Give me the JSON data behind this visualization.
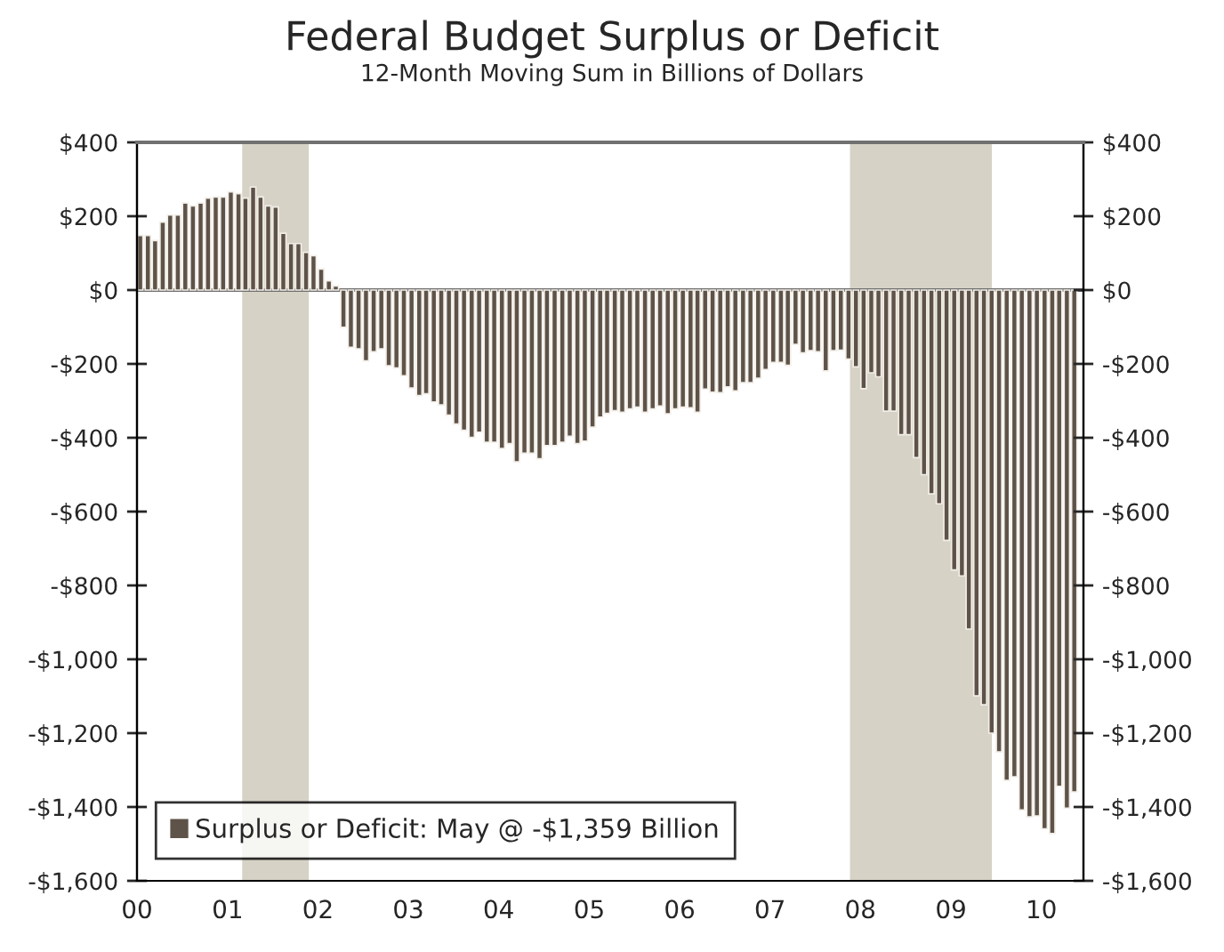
{
  "chart_data": {
    "type": "bar",
    "title": "Federal Budget Surplus or Deficit",
    "subtitle": "12-Month Moving Sum in Billions of Dollars",
    "x": [
      "2000-01",
      "2000-02",
      "2000-03",
      "2000-04",
      "2000-05",
      "2000-06",
      "2000-07",
      "2000-08",
      "2000-09",
      "2000-10",
      "2000-11",
      "2000-12",
      "2001-01",
      "2001-02",
      "2001-03",
      "2001-04",
      "2001-05",
      "2001-06",
      "2001-07",
      "2001-08",
      "2001-09",
      "2001-10",
      "2001-11",
      "2001-12",
      "2002-01",
      "2002-02",
      "2002-03",
      "2002-04",
      "2002-05",
      "2002-06",
      "2002-07",
      "2002-08",
      "2002-09",
      "2002-10",
      "2002-11",
      "2002-12",
      "2003-01",
      "2003-02",
      "2003-03",
      "2003-04",
      "2003-05",
      "2003-06",
      "2003-07",
      "2003-08",
      "2003-09",
      "2003-10",
      "2003-11",
      "2003-12",
      "2004-01",
      "2004-02",
      "2004-03",
      "2004-04",
      "2004-05",
      "2004-06",
      "2004-07",
      "2004-08",
      "2004-09",
      "2004-10",
      "2004-11",
      "2004-12",
      "2005-01",
      "2005-02",
      "2005-03",
      "2005-04",
      "2005-05",
      "2005-06",
      "2005-07",
      "2005-08",
      "2005-09",
      "2005-10",
      "2005-11",
      "2005-12",
      "2006-01",
      "2006-02",
      "2006-03",
      "2006-04",
      "2006-05",
      "2006-06",
      "2006-07",
      "2006-08",
      "2006-09",
      "2006-10",
      "2006-11",
      "2006-12",
      "2007-01",
      "2007-02",
      "2007-03",
      "2007-04",
      "2007-05",
      "2007-06",
      "2007-07",
      "2007-08",
      "2007-09",
      "2007-10",
      "2007-11",
      "2007-12",
      "2008-01",
      "2008-02",
      "2008-03",
      "2008-04",
      "2008-05",
      "2008-06",
      "2008-07",
      "2008-08",
      "2008-09",
      "2008-10",
      "2008-11",
      "2008-12",
      "2009-01",
      "2009-02",
      "2009-03",
      "2009-04",
      "2009-05",
      "2009-06",
      "2009-07",
      "2009-08",
      "2009-09",
      "2009-10",
      "2009-11",
      "2009-12",
      "2010-01",
      "2010-02",
      "2010-03",
      "2010-04",
      "2010-05"
    ],
    "series": [
      {
        "name": "Surplus or Deficit: May @ -$1,359 Billion",
        "color": "#5e5349",
        "values": [
          148,
          148,
          134,
          184,
          203,
          203,
          236,
          228,
          236,
          249,
          252,
          252,
          266,
          261,
          249,
          279,
          252,
          228,
          225,
          154,
          126,
          126,
          102,
          93,
          57,
          25,
          11,
          -101,
          -155,
          -159,
          -192,
          -167,
          -159,
          -205,
          -211,
          -232,
          -265,
          -286,
          -281,
          -303,
          -311,
          -339,
          -363,
          -380,
          -399,
          -385,
          -412,
          -412,
          -429,
          -416,
          -465,
          -442,
          -442,
          -457,
          -421,
          -421,
          -412,
          -396,
          -416,
          -409,
          -371,
          -344,
          -334,
          -327,
          -331,
          -322,
          -317,
          -331,
          -322,
          -314,
          -335,
          -322,
          -317,
          -319,
          -331,
          -268,
          -277,
          -278,
          -262,
          -273,
          -251,
          -251,
          -239,
          -215,
          -196,
          -196,
          -204,
          -147,
          -170,
          -164,
          -167,
          -219,
          -164,
          -163,
          -187,
          -208,
          -267,
          -224,
          -235,
          -328,
          -328,
          -392,
          -392,
          -454,
          -500,
          -552,
          -579,
          -678,
          -758,
          -774,
          -918,
          -1099,
          -1123,
          -1200,
          -1251,
          -1328,
          -1318,
          -1408,
          -1427,
          -1424,
          -1459,
          -1472,
          -1344,
          -1403,
          -1359
        ]
      }
    ],
    "xlim": [
      "2000-01-01",
      "2010-06-20"
    ],
    "xticks": [
      {
        "value": "2000-01-01",
        "label": "00"
      },
      {
        "value": "2001-01-01",
        "label": "01"
      },
      {
        "value": "2002-01-01",
        "label": "02"
      },
      {
        "value": "2003-01-01",
        "label": "03"
      },
      {
        "value": "2004-01-01",
        "label": "04"
      },
      {
        "value": "2005-01-01",
        "label": "05"
      },
      {
        "value": "2006-01-01",
        "label": "06"
      },
      {
        "value": "2007-01-01",
        "label": "07"
      },
      {
        "value": "2008-01-01",
        "label": "08"
      },
      {
        "value": "2009-01-01",
        "label": "09"
      },
      {
        "value": "2010-01-01",
        "label": "10"
      }
    ],
    "ylim": [
      -1600,
      400
    ],
    "yticks": [
      {
        "value": 400,
        "label": "$400"
      },
      {
        "value": 200,
        "label": "$200"
      },
      {
        "value": 0,
        "label": "$0"
      },
      {
        "value": -200,
        "label": "-$200"
      },
      {
        "value": -400,
        "label": "-$400"
      },
      {
        "value": -600,
        "label": "-$600"
      },
      {
        "value": -800,
        "label": "-$800"
      },
      {
        "value": -1000,
        "label": "-$1,000"
      },
      {
        "value": -1200,
        "label": "-$1,200"
      },
      {
        "value": -1400,
        "label": "-$1,400"
      },
      {
        "value": -1600,
        "label": "-$1,600"
      }
    ],
    "y2lim": [
      -1600,
      400
    ],
    "y2ticks": [
      {
        "value": 400,
        "label": "$400"
      },
      {
        "value": 200,
        "label": "$200"
      },
      {
        "value": 0,
        "label": "$0"
      },
      {
        "value": -200,
        "label": "-$200"
      },
      {
        "value": -400,
        "label": "-$400"
      },
      {
        "value": -600,
        "label": "-$600"
      },
      {
        "value": -800,
        "label": "-$800"
      },
      {
        "value": -1000,
        "label": "-$1,000"
      },
      {
        "value": -1200,
        "label": "-$1,200"
      },
      {
        "value": -1400,
        "label": "-$1,400"
      },
      {
        "value": -1600,
        "label": "-$1,600"
      }
    ],
    "bands": [
      {
        "axis": "x",
        "from": "2001-03-01",
        "to": "2001-11-25",
        "color": "#d6d2c6"
      },
      {
        "axis": "x",
        "from": "2007-11-20",
        "to": "2009-06-15",
        "color": "#d6d2c6"
      }
    ],
    "ref_lines": [
      {
        "axis": "y",
        "value": 0,
        "color": "#707070"
      }
    ],
    "legend": "bottom left",
    "grid": false
  }
}
